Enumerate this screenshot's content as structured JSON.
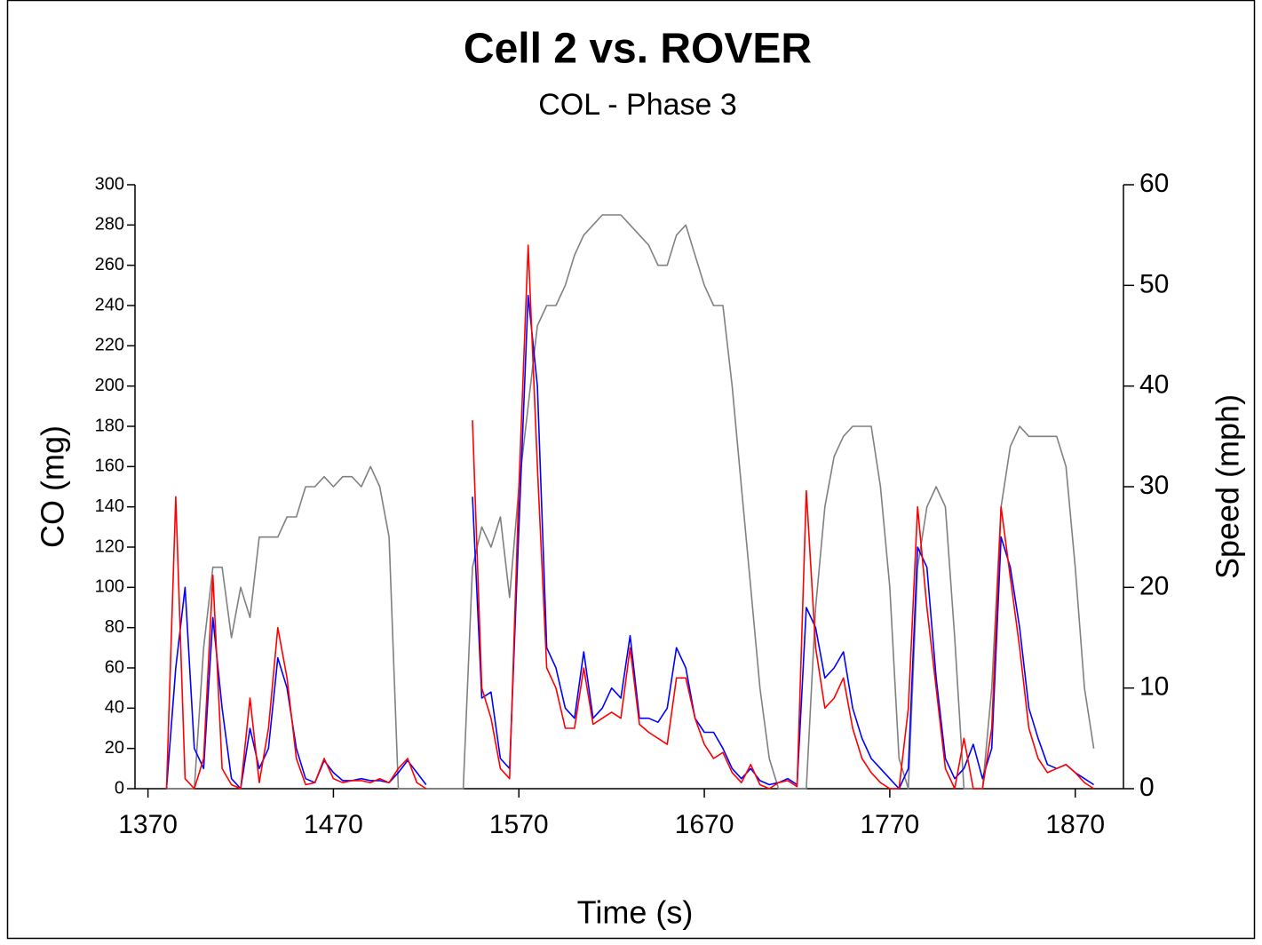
{
  "chart_data": {
    "type": "line",
    "title": "Cell 2 vs. ROVER",
    "subtitle": "COL - Phase 3",
    "xlabel": "Time (s)",
    "ylabel": "CO (mg)",
    "y2label": "Speed (mph)",
    "xlim": [
      1363,
      1896
    ],
    "xticks": [
      1370,
      1470,
      1570,
      1670,
      1770,
      1870
    ],
    "ylim": [
      0,
      300
    ],
    "yticks": [
      0,
      20,
      40,
      60,
      80,
      100,
      120,
      140,
      160,
      180,
      200,
      220,
      240,
      260,
      280,
      300
    ],
    "y2lim": [
      0,
      60
    ],
    "y2ticks": [
      0,
      10,
      20,
      30,
      40,
      50,
      60
    ],
    "grid": false,
    "x": [
      1380,
      1385,
      1390,
      1395,
      1400,
      1405,
      1410,
      1415,
      1420,
      1425,
      1430,
      1435,
      1440,
      1445,
      1450,
      1455,
      1460,
      1465,
      1470,
      1475,
      1480,
      1485,
      1490,
      1495,
      1500,
      1505,
      1510,
      1515,
      1520,
      1525,
      1530,
      1535,
      1540,
      1545,
      1550,
      1555,
      1560,
      1565,
      1570,
      1575,
      1580,
      1585,
      1590,
      1595,
      1600,
      1605,
      1610,
      1615,
      1620,
      1625,
      1630,
      1635,
      1640,
      1645,
      1650,
      1655,
      1660,
      1665,
      1670,
      1675,
      1680,
      1685,
      1690,
      1695,
      1700,
      1705,
      1710,
      1715,
      1720,
      1725,
      1730,
      1735,
      1740,
      1745,
      1750,
      1755,
      1760,
      1765,
      1770,
      1775,
      1780,
      1785,
      1790,
      1795,
      1800,
      1805,
      1810,
      1815,
      1820,
      1825,
      1830,
      1835,
      1840,
      1845,
      1850,
      1855,
      1860,
      1865,
      1870,
      1875,
      1880
    ],
    "series": [
      {
        "color": "#808080",
        "axis": "y2",
        "values": [
          0,
          0,
          0,
          0,
          14,
          22,
          22,
          15,
          20,
          17,
          25,
          25,
          25,
          27,
          27,
          30,
          30,
          31,
          30,
          31,
          31,
          30,
          32,
          30,
          25,
          0,
          0,
          0,
          0,
          0,
          0,
          0,
          0,
          22,
          26,
          24,
          27,
          19,
          30,
          38,
          46,
          48,
          48,
          50,
          53,
          55,
          56,
          57,
          57,
          57,
          56,
          55,
          54,
          52,
          52,
          55,
          56,
          53,
          50,
          48,
          48,
          40,
          30,
          20,
          10,
          3,
          0,
          0,
          0,
          0,
          18,
          28,
          33,
          35,
          36,
          36,
          36,
          30,
          20,
          3,
          0,
          22,
          28,
          30,
          28,
          15,
          0,
          0,
          0,
          10,
          28,
          34,
          36,
          35,
          35,
          35,
          35,
          32,
          22,
          10,
          4
        ]
      },
      {
        "color": "#0000ff",
        "values": [
          0,
          60,
          100,
          20,
          10,
          85,
          40,
          5,
          0,
          30,
          10,
          20,
          65,
          50,
          20,
          5,
          3,
          14,
          8,
          4,
          4,
          5,
          4,
          4,
          3,
          8,
          14,
          8,
          2,
          null,
          null,
          null,
          null,
          145,
          45,
          48,
          15,
          10,
          130,
          245,
          200,
          70,
          60,
          40,
          35,
          68,
          35,
          40,
          50,
          45,
          76,
          35,
          35,
          33,
          40,
          70,
          60,
          35,
          28,
          28,
          20,
          10,
          5,
          10,
          4,
          2,
          3,
          5,
          2,
          90,
          80,
          55,
          60,
          68,
          40,
          25,
          15,
          10,
          5,
          0,
          10,
          120,
          110,
          55,
          15,
          5,
          10,
          22,
          5,
          20,
          125,
          110,
          80,
          40,
          25,
          12,
          10,
          12,
          8,
          5,
          2
        ]
      },
      {
        "color": "#ff0000",
        "values": [
          0,
          145,
          5,
          0,
          15,
          106,
          10,
          2,
          0,
          45,
          3,
          30,
          80,
          55,
          15,
          2,
          3,
          15,
          5,
          3,
          4,
          4,
          3,
          5,
          3,
          10,
          15,
          3,
          0,
          null,
          null,
          null,
          null,
          183,
          50,
          35,
          10,
          5,
          150,
          270,
          160,
          60,
          50,
          30,
          30,
          60,
          32,
          35,
          38,
          35,
          70,
          32,
          28,
          25,
          22,
          55,
          55,
          35,
          22,
          15,
          18,
          8,
          3,
          12,
          2,
          0,
          3,
          4,
          1,
          148,
          70,
          40,
          45,
          55,
          30,
          15,
          8,
          3,
          0,
          0,
          40,
          140,
          90,
          50,
          10,
          0,
          25,
          0,
          0,
          30,
          140,
          105,
          70,
          30,
          15,
          8,
          10,
          12,
          8,
          3,
          0
        ]
      }
    ]
  }
}
